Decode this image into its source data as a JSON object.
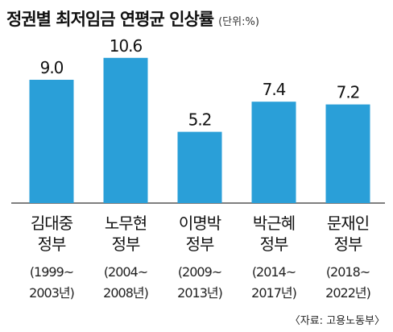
{
  "header": {
    "title": "정권별 최저임금 연평균 인상률",
    "unit": "(단위:%)"
  },
  "chart_data": {
    "type": "bar",
    "title": "정권별 최저임금 연평균 인상률",
    "ylabel": "",
    "xlabel": "",
    "ylim": [
      0,
      12
    ],
    "grid": false,
    "bar_color": "#2a9fd8",
    "categories": [
      {
        "name": "김대중",
        "suffix": "정부",
        "period_start": "(1999~",
        "period_end": "2003년)"
      },
      {
        "name": "노무현",
        "suffix": "정부",
        "period_start": "(2004~",
        "period_end": "2008년)"
      },
      {
        "name": "이명박",
        "suffix": "정부",
        "period_start": "(2009~",
        "period_end": "2013년)"
      },
      {
        "name": "박근혜",
        "suffix": "정부",
        "period_start": "(2014~",
        "period_end": "2017년)"
      },
      {
        "name": "문재인",
        "suffix": "정부",
        "period_start": "(2018~",
        "period_end": "2022년)"
      }
    ],
    "values": [
      9.0,
      10.6,
      5.2,
      7.4,
      7.2
    ],
    "value_labels": [
      "9.0",
      "10.6",
      "5.2",
      "7.4",
      "7.2"
    ]
  },
  "footer": {
    "source": "〈자료: 고용노동부〉"
  }
}
